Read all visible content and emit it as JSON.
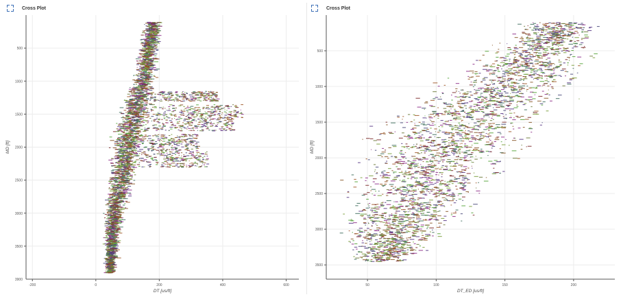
{
  "panels": [
    {
      "title": "Cross Plot",
      "expand_icon": "expand-corners-icon",
      "chart_data": {
        "type": "scatter",
        "title": "",
        "xlabel": "DT [us/ft]",
        "ylabel": "MD [ft]",
        "xlim": [
          -220,
          640
        ],
        "ylim": [
          4000,
          0
        ],
        "y_inverted": true,
        "xticks": [
          -200,
          0,
          200,
          400,
          600
        ],
        "xtick_labels": [
          "-200",
          "0",
          "200",
          "400",
          "600"
        ],
        "yticks": [
          500,
          1000,
          1500,
          2000,
          2500,
          3000,
          3500
        ],
        "ytick_labels": [
          "500",
          "1000",
          "1500",
          "2000",
          "2500",
          "3000",
          "3500"
        ],
        "ybottom_label": "3900",
        "grid": true,
        "series_colors": [
          "#5b3a86",
          "#8e2f8a",
          "#7a9e3b",
          "#56a33a",
          "#8a5a2b",
          "#a05a2a",
          "#3f6f5e",
          "#4a4a7a",
          "#7d2b2b",
          "#6d7a3a"
        ],
        "trend_points": [
          {
            "md": 100,
            "dt": 175,
            "spread": 25
          },
          {
            "md": 500,
            "dt": 165,
            "spread": 30
          },
          {
            "md": 1000,
            "dt": 145,
            "spread": 35
          },
          {
            "md": 1500,
            "dt": 115,
            "spread": 45
          },
          {
            "md": 2000,
            "dt": 95,
            "spread": 50
          },
          {
            "md": 2500,
            "dt": 75,
            "spread": 40
          },
          {
            "md": 3000,
            "dt": 55,
            "spread": 30
          },
          {
            "md": 3500,
            "dt": 45,
            "spread": 20
          },
          {
            "md": 3900,
            "dt": 40,
            "spread": 15
          }
        ],
        "excursions": [
          {
            "md_from": 1150,
            "md_to": 1300,
            "dt_to": 380
          },
          {
            "md_from": 1350,
            "md_to": 1550,
            "dt_to": 460
          },
          {
            "md_from": 1550,
            "md_to": 1750,
            "dt_to": 430
          },
          {
            "md_from": 1800,
            "md_to": 2050,
            "dt_to": 320
          },
          {
            "md_from": 2050,
            "md_to": 2300,
            "dt_to": 350
          }
        ]
      }
    },
    {
      "title": "Cross Plot",
      "expand_icon": "expand-corners-icon",
      "chart_data": {
        "type": "scatter",
        "title": "",
        "xlabel": "DT_ED [us/ft]",
        "ylabel": "MD [ft]",
        "xlim": [
          20,
          230
        ],
        "ylim": [
          3700,
          0
        ],
        "y_inverted": true,
        "xticks": [
          50,
          100,
          150,
          200
        ],
        "xtick_labels": [
          "50",
          "100",
          "150",
          "200"
        ],
        "yticks": [
          500,
          1000,
          1500,
          2000,
          2500,
          3000,
          3500
        ],
        "ytick_labels": [
          "500",
          "1000",
          "1500",
          "2000",
          "2500",
          "3000",
          "3500"
        ],
        "grid": true,
        "series_colors": [
          "#5b3a86",
          "#8e2f8a",
          "#7a9e3b",
          "#56a33a",
          "#8a5a2b",
          "#a05a2a",
          "#3f6f5e",
          "#4a4a7a",
          "#7d2b2b",
          "#6d7a3a"
        ],
        "trend_points": [
          {
            "md": 100,
            "dt": 190,
            "spread": 25
          },
          {
            "md": 500,
            "dt": 175,
            "spread": 40
          },
          {
            "md": 1000,
            "dt": 150,
            "spread": 50
          },
          {
            "md": 1500,
            "dt": 120,
            "spread": 55
          },
          {
            "md": 2000,
            "dt": 100,
            "spread": 60
          },
          {
            "md": 2500,
            "dt": 85,
            "spread": 50
          },
          {
            "md": 3000,
            "dt": 70,
            "spread": 40
          },
          {
            "md": 3450,
            "dt": 60,
            "spread": 20
          }
        ],
        "excursions": []
      }
    }
  ]
}
